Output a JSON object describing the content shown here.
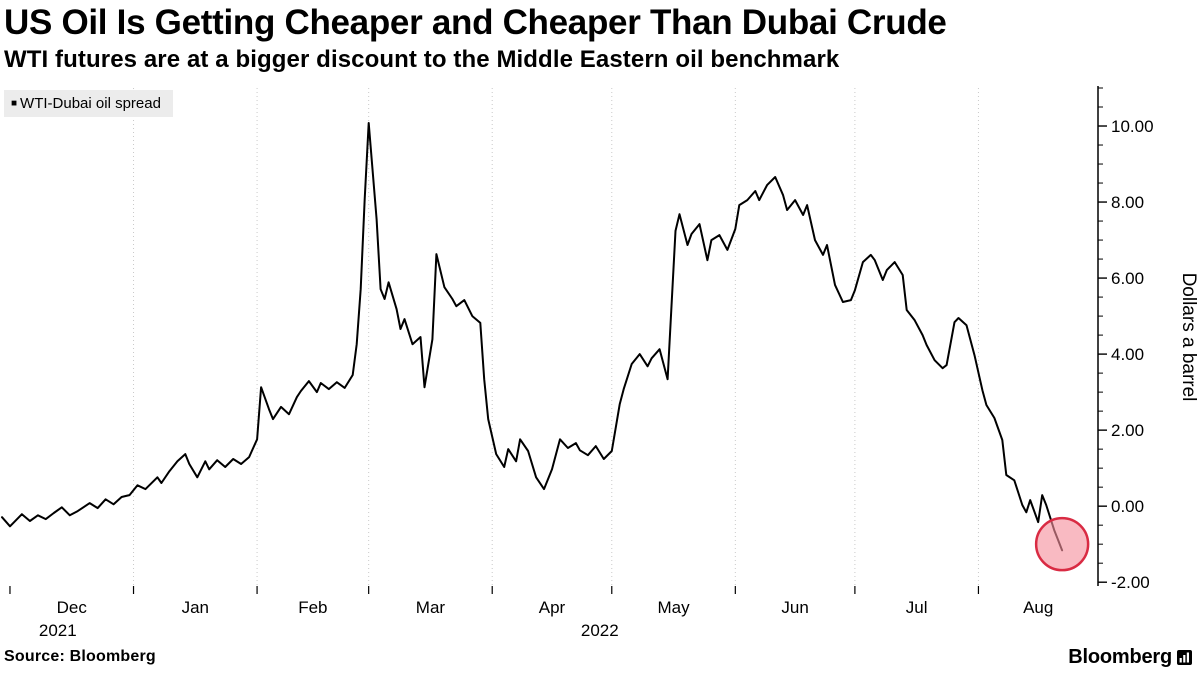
{
  "header": {
    "title": "US Oil Is Getting Cheaper and Cheaper Than Dubai Crude",
    "subtitle": "WTI futures are at a bigger discount to the Middle Eastern oil benchmark"
  },
  "legend": {
    "marker": "■",
    "label": "WTI-Dubai oil spread"
  },
  "footer": {
    "source": "Source: Bloomberg",
    "brand": "Bloomberg"
  },
  "chart_data": {
    "type": "line",
    "title": "US Oil Is Getting Cheaper and Cheaper Than Dubai Crude",
    "series_name": "WTI-Dubai oil spread",
    "ylabel": "Dollars a barrel",
    "ylim": [
      -2.1,
      11.0
    ],
    "x_domain_days": [
      0,
      275
    ],
    "grid": "vertical-dotted",
    "legend_position": "top-left",
    "colors": {
      "line": "#000000",
      "grid": "#c9c9c9",
      "axis": "#000000",
      "legend_bg": "#ececec"
    },
    "y_ticks": [
      {
        "v": 10,
        "label": "10.00"
      },
      {
        "v": 8,
        "label": "8.00"
      },
      {
        "v": 6,
        "label": "6.00"
      },
      {
        "v": 4,
        "label": "4.00"
      },
      {
        "v": 2,
        "label": "2.00"
      },
      {
        "v": 0,
        "label": "0.00"
      },
      {
        "v": -2,
        "label": "-2.00"
      }
    ],
    "y_minor_step": 0.5,
    "x_axis": {
      "months": [
        {
          "label": "Dec",
          "start": 2,
          "end": 33
        },
        {
          "label": "Jan",
          "start": 33,
          "end": 64
        },
        {
          "label": "Feb",
          "start": 64,
          "end": 92
        },
        {
          "label": "Mar",
          "start": 92,
          "end": 123
        },
        {
          "label": "Apr",
          "start": 123,
          "end": 153
        },
        {
          "label": "May",
          "start": 153,
          "end": 184
        },
        {
          "label": "Jun",
          "start": 184,
          "end": 214
        },
        {
          "label": "Jul",
          "start": 214,
          "end": 245
        },
        {
          "label": "Aug",
          "start": 245,
          "end": 275
        }
      ],
      "gridline_days": [
        33,
        64,
        92,
        123,
        153,
        184,
        214,
        245
      ],
      "tick_days": [
        2,
        33,
        64,
        92,
        123,
        153,
        184,
        214,
        245
      ],
      "year_labels": [
        {
          "text": "2021",
          "day": 14
        },
        {
          "text": "2022",
          "day": 150
        }
      ]
    },
    "highlight": {
      "day": 266,
      "value": -1.0,
      "radius": 26,
      "fill": "#f6909d",
      "fill_opacity": 0.62,
      "stroke": "#d92b43"
    },
    "points": [
      [
        0,
        -0.29
      ],
      [
        2,
        -0.53
      ],
      [
        5,
        -0.21
      ],
      [
        7,
        -0.39
      ],
      [
        9,
        -0.24
      ],
      [
        11,
        -0.34
      ],
      [
        13,
        -0.18
      ],
      [
        15,
        -0.03
      ],
      [
        17,
        -0.24
      ],
      [
        19,
        -0.13
      ],
      [
        22,
        0.08
      ],
      [
        24,
        -0.05
      ],
      [
        26,
        0.18
      ],
      [
        28,
        0.05
      ],
      [
        30,
        0.24
      ],
      [
        32,
        0.29
      ],
      [
        34,
        0.55
      ],
      [
        36,
        0.45
      ],
      [
        39,
        0.76
      ],
      [
        40,
        0.61
      ],
      [
        42,
        0.92
      ],
      [
        44,
        1.18
      ],
      [
        46,
        1.37
      ],
      [
        47,
        1.11
      ],
      [
        49,
        0.76
      ],
      [
        51,
        1.18
      ],
      [
        52,
        0.97
      ],
      [
        54,
        1.21
      ],
      [
        56,
        1.03
      ],
      [
        58,
        1.24
      ],
      [
        60,
        1.11
      ],
      [
        62,
        1.29
      ],
      [
        64,
        1.76
      ],
      [
        65,
        3.13
      ],
      [
        67,
        2.55
      ],
      [
        68,
        2.29
      ],
      [
        70,
        2.61
      ],
      [
        72,
        2.42
      ],
      [
        74,
        2.87
      ],
      [
        75,
        3.03
      ],
      [
        77,
        3.29
      ],
      [
        79,
        3.0
      ],
      [
        80,
        3.24
      ],
      [
        82,
        3.08
      ],
      [
        84,
        3.26
      ],
      [
        86,
        3.11
      ],
      [
        88,
        3.45
      ],
      [
        89,
        4.26
      ],
      [
        90,
        5.71
      ],
      [
        91,
        8.08
      ],
      [
        92,
        10.08
      ],
      [
        94,
        7.55
      ],
      [
        95,
        5.71
      ],
      [
        96,
        5.45
      ],
      [
        97,
        5.89
      ],
      [
        99,
        5.18
      ],
      [
        100,
        4.66
      ],
      [
        101,
        4.92
      ],
      [
        103,
        4.26
      ],
      [
        105,
        4.45
      ],
      [
        106,
        3.13
      ],
      [
        108,
        4.39
      ],
      [
        109,
        6.63
      ],
      [
        111,
        5.76
      ],
      [
        113,
        5.45
      ],
      [
        114,
        5.26
      ],
      [
        116,
        5.42
      ],
      [
        118,
        5.0
      ],
      [
        120,
        4.82
      ],
      [
        121,
        3.34
      ],
      [
        122,
        2.29
      ],
      [
        124,
        1.37
      ],
      [
        126,
        1.03
      ],
      [
        127,
        1.5
      ],
      [
        129,
        1.18
      ],
      [
        130,
        1.76
      ],
      [
        132,
        1.45
      ],
      [
        134,
        0.76
      ],
      [
        136,
        0.45
      ],
      [
        138,
        0.97
      ],
      [
        140,
        1.76
      ],
      [
        142,
        1.53
      ],
      [
        144,
        1.66
      ],
      [
        145,
        1.47
      ],
      [
        147,
        1.34
      ],
      [
        149,
        1.58
      ],
      [
        151,
        1.24
      ],
      [
        153,
        1.45
      ],
      [
        155,
        2.68
      ],
      [
        156,
        3.08
      ],
      [
        158,
        3.74
      ],
      [
        160,
        4.0
      ],
      [
        162,
        3.68
      ],
      [
        163,
        3.89
      ],
      [
        165,
        4.13
      ],
      [
        167,
        3.34
      ],
      [
        169,
        7.24
      ],
      [
        170,
        7.68
      ],
      [
        172,
        6.87
      ],
      [
        173,
        7.16
      ],
      [
        175,
        7.42
      ],
      [
        177,
        6.47
      ],
      [
        178,
        7.0
      ],
      [
        180,
        7.13
      ],
      [
        182,
        6.74
      ],
      [
        184,
        7.29
      ],
      [
        185,
        7.92
      ],
      [
        187,
        8.05
      ],
      [
        189,
        8.29
      ],
      [
        190,
        8.05
      ],
      [
        192,
        8.45
      ],
      [
        194,
        8.66
      ],
      [
        196,
        8.18
      ],
      [
        197,
        7.79
      ],
      [
        199,
        8.05
      ],
      [
        201,
        7.66
      ],
      [
        202,
        7.92
      ],
      [
        204,
        7.0
      ],
      [
        206,
        6.61
      ],
      [
        207,
        6.87
      ],
      [
        209,
        5.82
      ],
      [
        211,
        5.37
      ],
      [
        213,
        5.42
      ],
      [
        214,
        5.68
      ],
      [
        216,
        6.42
      ],
      [
        218,
        6.61
      ],
      [
        219,
        6.47
      ],
      [
        221,
        5.95
      ],
      [
        222,
        6.21
      ],
      [
        224,
        6.42
      ],
      [
        226,
        6.08
      ],
      [
        227,
        5.16
      ],
      [
        229,
        4.89
      ],
      [
        231,
        4.5
      ],
      [
        232,
        4.24
      ],
      [
        234,
        3.84
      ],
      [
        236,
        3.63
      ],
      [
        237,
        3.71
      ],
      [
        239,
        4.84
      ],
      [
        240,
        4.95
      ],
      [
        242,
        4.76
      ],
      [
        244,
        3.97
      ],
      [
        246,
        3.05
      ],
      [
        247,
        2.66
      ],
      [
        249,
        2.32
      ],
      [
        251,
        1.74
      ],
      [
        252,
        0.82
      ],
      [
        254,
        0.68
      ],
      [
        256,
        0.03
      ],
      [
        257,
        -0.16
      ],
      [
        258,
        0.16
      ],
      [
        260,
        -0.42
      ],
      [
        261,
        0.29
      ],
      [
        262,
        0.03
      ],
      [
        264,
        -0.63
      ],
      [
        265,
        -0.89
      ],
      [
        266,
        -1.16
      ]
    ]
  }
}
